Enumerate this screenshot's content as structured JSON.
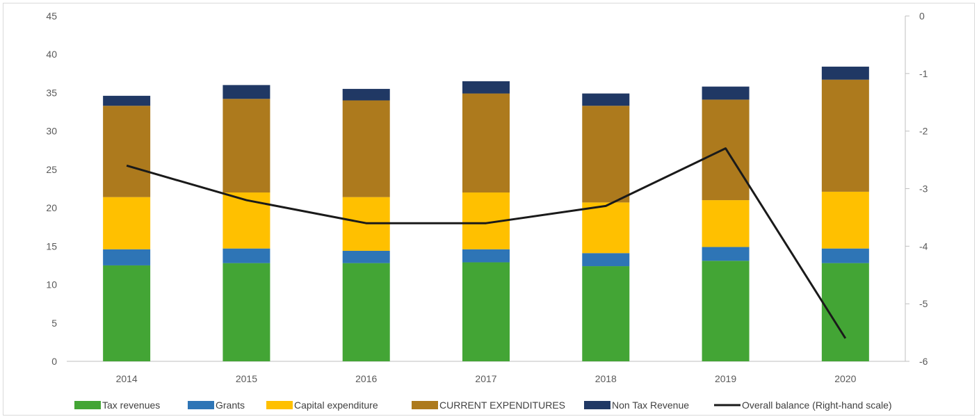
{
  "chart_data": {
    "type": "bar",
    "stacked": true,
    "categories": [
      "2014",
      "2015",
      "2016",
      "2017",
      "2018",
      "2019",
      "2020"
    ],
    "series": [
      {
        "name": "Tax revenues",
        "color": "#43a535",
        "values": [
          12.5,
          12.8,
          12.8,
          12.9,
          12.4,
          13.1,
          12.8
        ]
      },
      {
        "name": "Grants",
        "color": "#2e75b6",
        "values": [
          2.1,
          1.9,
          1.6,
          1.7,
          1.7,
          1.8,
          1.9
        ]
      },
      {
        "name": "Capital expenditure",
        "color": "#ffc000",
        "values": [
          6.8,
          7.3,
          7.0,
          7.4,
          6.6,
          6.1,
          7.4
        ]
      },
      {
        "name": "CURRENT EXPENDITURES",
        "color": "#ad7a1d",
        "values": [
          11.9,
          12.2,
          12.6,
          12.9,
          12.6,
          13.1,
          14.6
        ]
      },
      {
        "name": "Non Tax Revenue",
        "color": "#203864",
        "values": [
          1.3,
          1.8,
          1.5,
          1.6,
          1.6,
          1.7,
          1.7
        ]
      }
    ],
    "line": {
      "name": "Overall balance (Right-hand scale)",
      "color": "#1a1a1a",
      "axis": "right",
      "values": [
        -2.6,
        -3.2,
        -3.6,
        -3.6,
        -3.3,
        -2.3,
        -5.6
      ]
    },
    "y_left": {
      "lim": [
        0,
        45
      ],
      "ticks": [
        "0",
        "5",
        "10",
        "15",
        "20",
        "25",
        "30",
        "35",
        "40",
        "45"
      ]
    },
    "y_right": {
      "lim": [
        -6,
        0
      ],
      "ticks": [
        "0",
        "-1",
        "-2",
        "-3",
        "-4",
        "-5",
        "-6"
      ]
    },
    "grid": false,
    "legend_position": "bottom"
  }
}
